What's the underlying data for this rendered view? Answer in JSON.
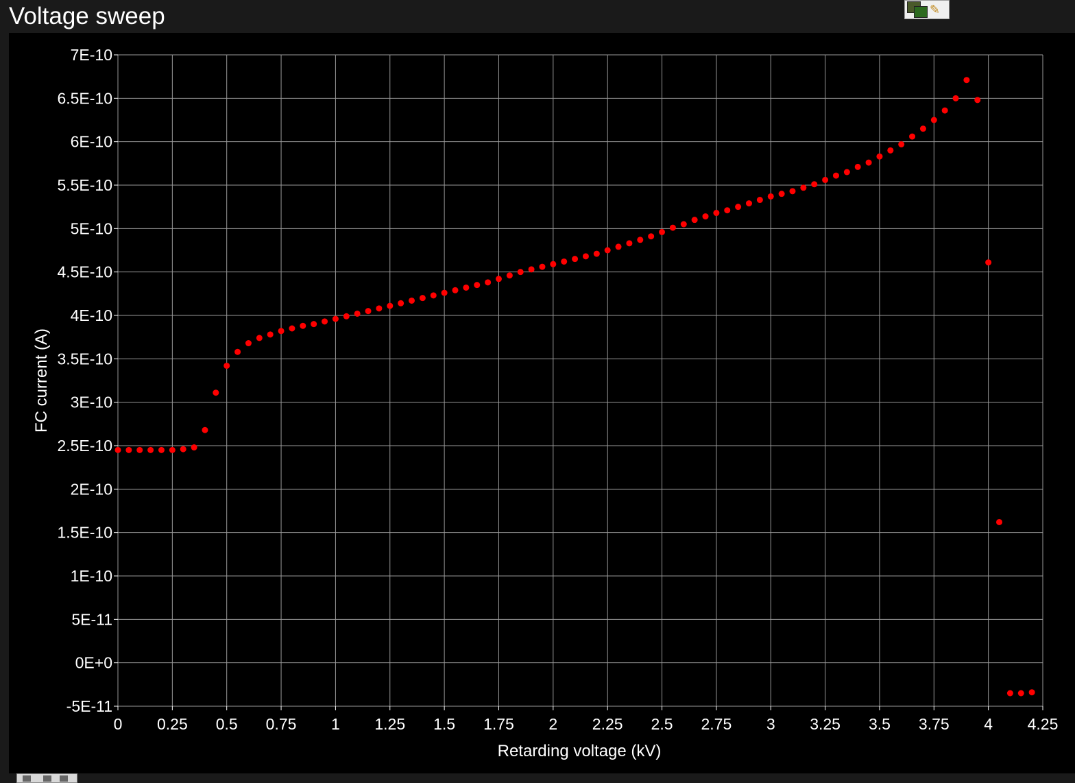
{
  "window": {
    "title": "Voltage sweep"
  },
  "chart_data": {
    "type": "scatter",
    "title": "",
    "xlabel": "Retarding voltage (kV)",
    "ylabel": "FC current (A)",
    "xlim": [
      0,
      4.25
    ],
    "ylim": [
      -5e-11,
      7e-10
    ],
    "grid": true,
    "marker_color": "#ff0000",
    "grid_color": "#9a9a9a",
    "background": "#000000",
    "x_ticks": [
      0,
      0.25,
      0.5,
      0.75,
      1,
      1.25,
      1.5,
      1.75,
      2,
      2.25,
      2.5,
      2.75,
      3,
      3.25,
      3.5,
      3.75,
      4,
      4.25
    ],
    "x_tick_labels": [
      "0",
      "0.25",
      "0.5",
      "0.75",
      "1",
      "1.25",
      "1.5",
      "1.75",
      "2",
      "2.25",
      "2.5",
      "2.75",
      "3",
      "3.25",
      "3.5",
      "3.75",
      "4",
      "4.25"
    ],
    "y_ticks": [
      -5e-11,
      0,
      5e-11,
      1e-10,
      1.5e-10,
      2e-10,
      2.5e-10,
      3e-10,
      3.5e-10,
      4e-10,
      4.5e-10,
      5e-10,
      5.5e-10,
      6e-10,
      6.5e-10,
      7e-10
    ],
    "y_tick_labels": [
      "-5E-11",
      "0E+0",
      "5E-11",
      "1E-10",
      "1.5E-10",
      "2E-10",
      "2.5E-10",
      "3E-10",
      "3.5E-10",
      "4E-10",
      "4.5E-10",
      "5E-10",
      "5.5E-10",
      "6E-10",
      "6.5E-10",
      "7E-10"
    ],
    "series": [
      {
        "x": [
          0,
          0.05,
          0.1,
          0.15,
          0.2,
          0.25,
          0.3,
          0.35,
          0.4,
          0.45,
          0.5,
          0.55,
          0.6,
          0.65,
          0.7,
          0.75,
          0.8,
          0.85,
          0.9,
          0.95,
          1,
          1.05,
          1.1,
          1.15,
          1.2,
          1.25,
          1.3,
          1.35,
          1.4,
          1.45,
          1.5,
          1.55,
          1.6,
          1.65,
          1.7,
          1.75,
          1.8,
          1.85,
          1.9,
          1.95,
          2,
          2.05,
          2.1,
          2.15,
          2.2,
          2.25,
          2.3,
          2.35,
          2.4,
          2.45,
          2.5,
          2.55,
          2.6,
          2.65,
          2.7,
          2.75,
          2.8,
          2.85,
          2.9,
          2.95,
          3,
          3.05,
          3.1,
          3.15,
          3.2,
          3.25,
          3.3,
          3.35,
          3.4,
          3.45,
          3.5,
          3.55,
          3.6,
          3.65,
          3.7,
          3.75,
          3.8,
          3.85,
          3.9,
          3.95,
          4,
          4.05,
          4.1,
          4.15,
          4.2
        ],
        "y": [
          2.45e-10,
          2.45e-10,
          2.45e-10,
          2.45e-10,
          2.45e-10,
          2.45e-10,
          2.46e-10,
          2.48e-10,
          2.68e-10,
          3.11e-10,
          3.42e-10,
          3.58e-10,
          3.68e-10,
          3.74e-10,
          3.78e-10,
          3.82e-10,
          3.85e-10,
          3.88e-10,
          3.9e-10,
          3.93e-10,
          3.96e-10,
          3.99e-10,
          4.02e-10,
          4.05e-10,
          4.08e-10,
          4.11e-10,
          4.14e-10,
          4.17e-10,
          4.2e-10,
          4.23e-10,
          4.26e-10,
          4.29e-10,
          4.32e-10,
          4.35e-10,
          4.38e-10,
          4.42e-10,
          4.46e-10,
          4.5e-10,
          4.53e-10,
          4.56e-10,
          4.59e-10,
          4.62e-10,
          4.65e-10,
          4.68e-10,
          4.71e-10,
          4.75e-10,
          4.79e-10,
          4.83e-10,
          4.87e-10,
          4.91e-10,
          4.96e-10,
          5.01e-10,
          5.05e-10,
          5.1e-10,
          5.14e-10,
          5.18e-10,
          5.21e-10,
          5.25e-10,
          5.29e-10,
          5.33e-10,
          5.37e-10,
          5.4e-10,
          5.43e-10,
          5.47e-10,
          5.51e-10,
          5.56e-10,
          5.61e-10,
          5.65e-10,
          5.71e-10,
          5.76e-10,
          5.83e-10,
          5.9e-10,
          5.97e-10,
          6.06e-10,
          6.15e-10,
          6.25e-10,
          6.36e-10,
          6.5e-10,
          6.71e-10,
          6.48e-10,
          4.61e-10,
          1.62e-10,
          -3.5e-11,
          -3.5e-11,
          -3.4e-11
        ]
      }
    ]
  }
}
